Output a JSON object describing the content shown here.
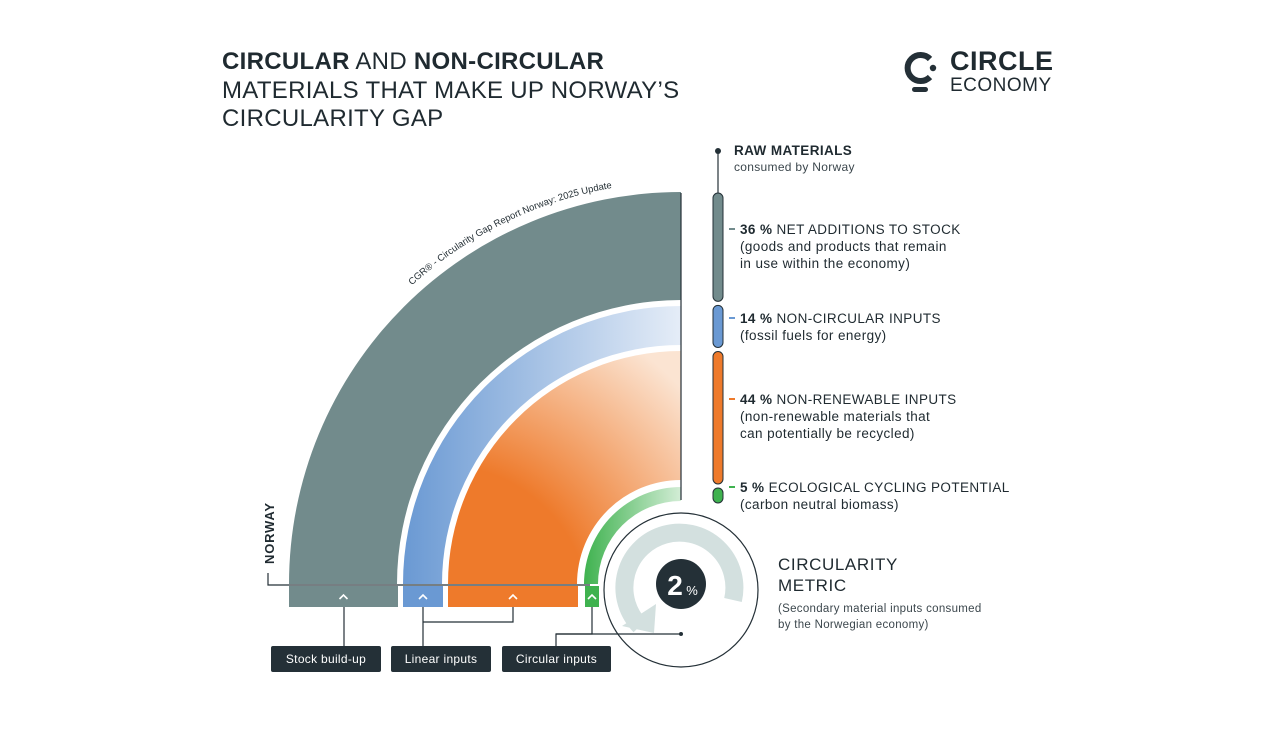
{
  "title": {
    "bold1": "CIRCULAR",
    "light1": " AND ",
    "bold2": "NON-CIRCULAR",
    "line2": "MATERIALS THAT MAKE UP NORWAY’S",
    "line3": "CIRCULARITY GAP"
  },
  "logo": {
    "line1": "CIRCLE",
    "line2": "ECONOMY"
  },
  "source": "CGR® - Circularity Gap Report Norway: 2025 Update",
  "country": "NORWAY",
  "raw_materials": {
    "heading": "RAW MATERIALS",
    "sub": "consumed by Norway"
  },
  "colors": {
    "stock": "#728b8c",
    "linear": "#6a99d3",
    "nonrenewable": "#ee7a2b",
    "cycling": "#3fb24f",
    "dark": "#243037",
    "ring": "#d3e0df"
  },
  "chart_data": {
    "type": "nested-arcs",
    "segments": [
      {
        "key": "stock",
        "percent": 36,
        "pct_label": "36 %",
        "name": "NET ADDITIONS TO STOCK",
        "desc1": "(goods and products that remain",
        "desc2": "in use within the economy)",
        "group": "Stock build-up"
      },
      {
        "key": "linear",
        "percent": 14,
        "pct_label": "14 %",
        "name": "NON-CIRCULAR INPUTS",
        "desc1": "(fossil fuels for energy)",
        "desc2": "",
        "group": "Linear inputs"
      },
      {
        "key": "nonrenewable",
        "percent": 44,
        "pct_label": "44 %",
        "name": "NON-RENEWABLE INPUTS",
        "desc1": "(non-renewable materials that",
        "desc2": "can potentially be recycled)",
        "group": "Linear inputs"
      },
      {
        "key": "cycling",
        "percent": 5,
        "pct_label": "5 %",
        "name": "ECOLOGICAL CYCLING POTENTIAL",
        "desc1": "(carbon neutral biomass)",
        "desc2": "",
        "group": "Circular inputs"
      }
    ],
    "circularity_metric": {
      "value": 2,
      "value_label": "2",
      "unit": "%"
    }
  },
  "metric": {
    "title_line1": "CIRCULARITY",
    "title_line2": "METRIC",
    "desc_line1": "(Secondary material inputs consumed",
    "desc_line2": "by the Norwegian economy)"
  },
  "pills": {
    "stock": "Stock build-up",
    "linear": "Linear inputs",
    "circular": "Circular inputs"
  }
}
